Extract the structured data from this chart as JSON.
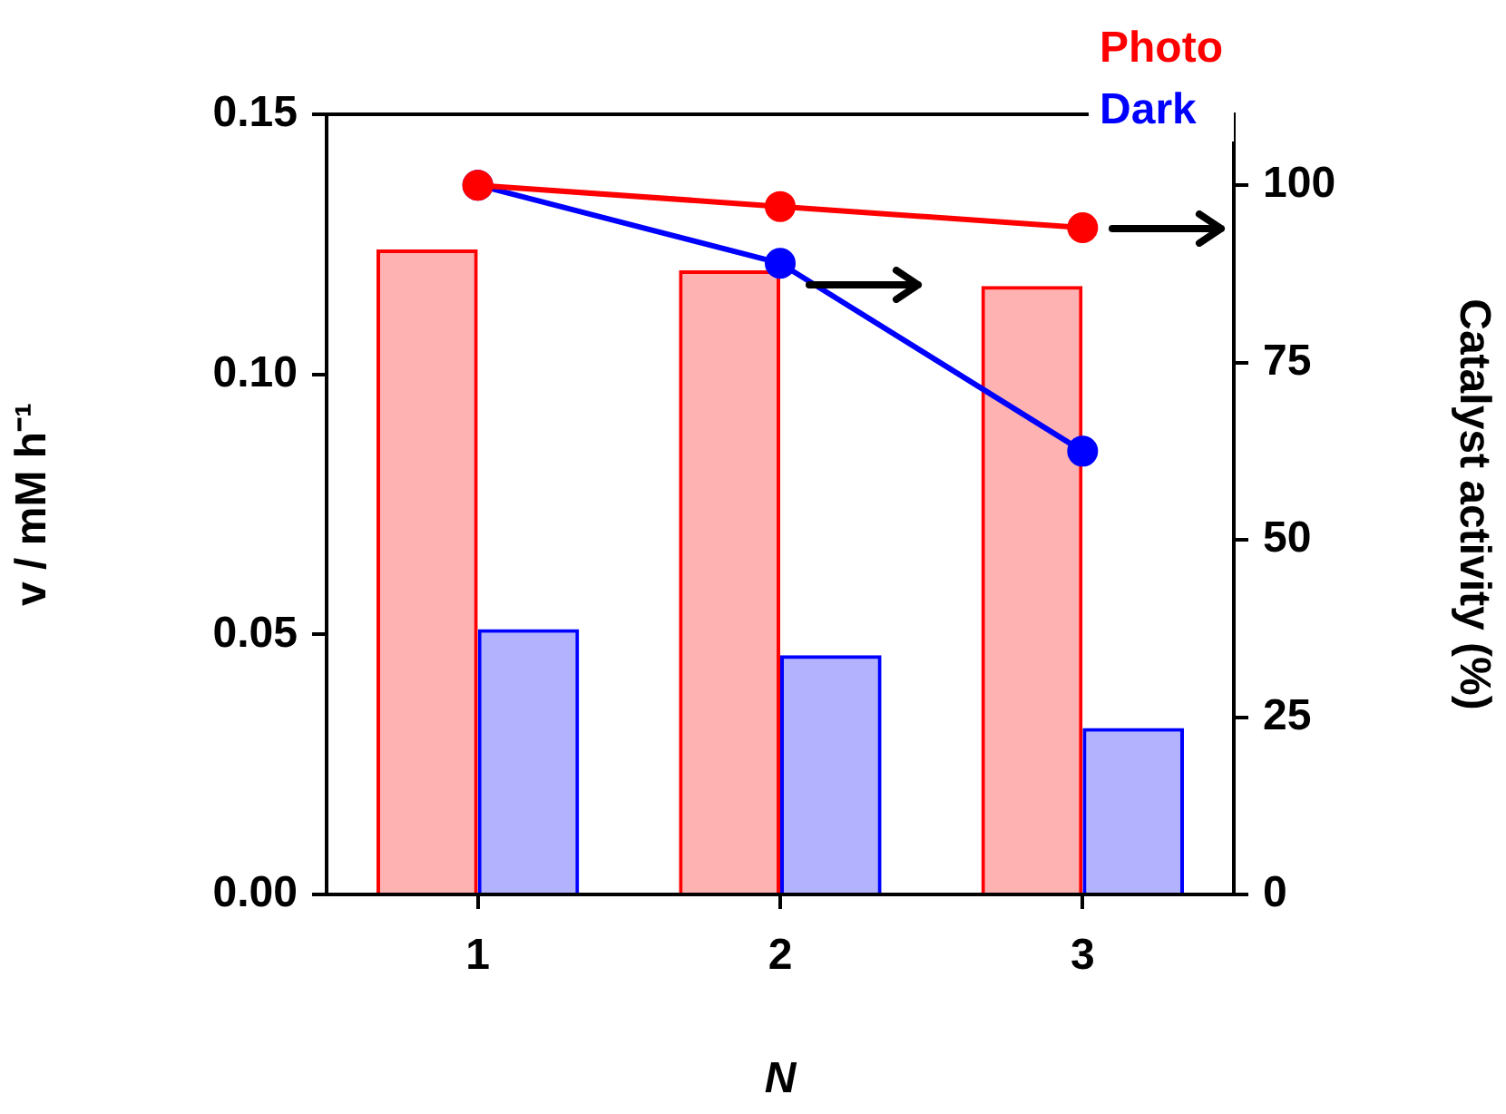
{
  "chart_data": {
    "type": "bar",
    "categories": [
      "1",
      "2",
      "3"
    ],
    "series": [
      {
        "name": "Photo",
        "color": "#ff0000",
        "values": [
          0.124,
          0.12,
          0.117
        ]
      },
      {
        "name": "Dark",
        "color": "#0000ff",
        "values": [
          0.051,
          0.046,
          0.032
        ]
      },
      {
        "type": "line",
        "axis": "y2",
        "color": "#ff0000",
        "values": [
          100,
          97,
          94
        ]
      },
      {
        "type": "line",
        "axis": "y2",
        "color": "#0000ff",
        "values": [
          100,
          89,
          62.5
        ]
      }
    ],
    "xlabel": "N",
    "ylabel": "v / mM h⁻¹",
    "y2label": "Catalyst activity (%)",
    "ylim": [
      0,
      0.15
    ],
    "yticks": [
      {
        "value": 0,
        "label": "0.00"
      },
      {
        "value": 0.05,
        "label": "0.05"
      },
      {
        "value": 0.1,
        "label": "0.10"
      },
      {
        "value": 0.15,
        "label": "0.15"
      }
    ],
    "y2lim": [
      0,
      110
    ],
    "y2ticks": [
      0,
      25,
      50,
      75,
      100
    ],
    "marker": "circle",
    "legend": "top right",
    "grid": false
  }
}
